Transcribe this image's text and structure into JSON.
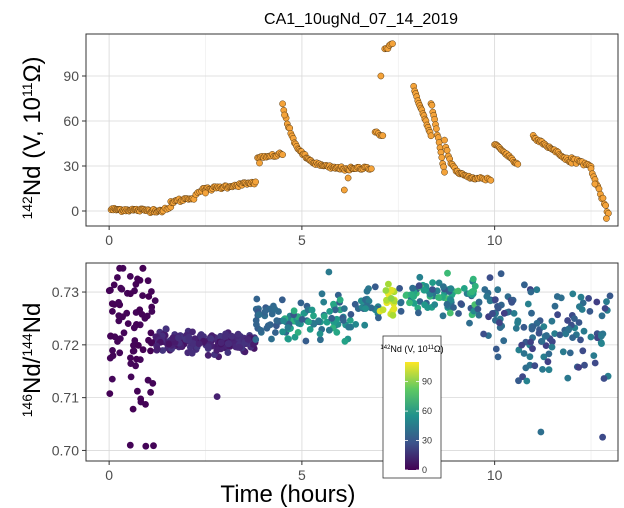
{
  "chart_data": [
    {
      "type": "scatter",
      "title": "CA1_10ugNd_07_14_2019",
      "ylabel": {
        "sup": "142",
        "main": "Nd (V, 10",
        "sup2": "11",
        "end": "Ω)"
      },
      "xlim": [
        -0.6,
        13.2
      ],
      "ylim": [
        -10,
        118
      ],
      "x_ticks": [
        0,
        5,
        10
      ],
      "y_ticks": [
        0,
        30,
        60,
        90
      ],
      "grid": true,
      "marker_color": "#f4a33a",
      "marker_edge": "#5a3a10",
      "segments": [
        {
          "x0": 0.05,
          "x1": 1.4,
          "y0": 1,
          "y1": 0.3,
          "n": 50
        },
        {
          "x0": 1.4,
          "x1": 1.6,
          "y0": 0.3,
          "y1": 2,
          "n": 5
        },
        {
          "x0": 1.6,
          "x1": 2.2,
          "y0": 6,
          "y1": 9,
          "n": 18
        },
        {
          "x0": 2.25,
          "x1": 2.35,
          "y0": 11,
          "y1": 13,
          "n": 3
        },
        {
          "x0": 2.4,
          "x1": 3.8,
          "y0": 14,
          "y1": 19,
          "n": 45
        },
        {
          "x0": 3.85,
          "x1": 4.5,
          "y0": 35,
          "y1": 38,
          "n": 18
        },
        {
          "x0": 4.5,
          "x1": 6.3,
          "y0": 71,
          "y1": 28,
          "n": 60,
          "curve": 2.5
        },
        {
          "x0": 6.3,
          "x1": 6.8,
          "y0": 28,
          "y1": 29,
          "n": 15
        },
        {
          "x0": 6.9,
          "x1": 7.1,
          "y0": 53,
          "y1": 50,
          "n": 6
        },
        {
          "x0": 7.15,
          "x1": 7.35,
          "y0": 108,
          "y1": 111,
          "n": 6
        },
        {
          "x0": 7.9,
          "x1": 8.35,
          "y0": 82,
          "y1": 50,
          "n": 18
        },
        {
          "x0": 8.35,
          "x1": 8.7,
          "y0": 73,
          "y1": 26,
          "n": 16
        },
        {
          "x0": 8.7,
          "x1": 9.5,
          "y0": 47,
          "y1": 22,
          "n": 25,
          "curve": 2
        },
        {
          "x0": 9.5,
          "x1": 9.9,
          "y0": 22,
          "y1": 21,
          "n": 10
        },
        {
          "x0": 10.0,
          "x1": 10.6,
          "y0": 45,
          "y1": 31,
          "n": 20
        },
        {
          "x0": 11.0,
          "x1": 12.0,
          "y0": 50,
          "y1": 32,
          "n": 32
        },
        {
          "x0": 12.0,
          "x1": 12.5,
          "y0": 35,
          "y1": 30,
          "n": 14
        },
        {
          "x0": 12.5,
          "x1": 12.95,
          "y0": 28,
          "y1": -2,
          "n": 14
        }
      ],
      "outliers": [
        {
          "x": 6.1,
          "y": 14
        },
        {
          "x": 6.2,
          "y": 22
        },
        {
          "x": 4.55,
          "y": 64
        },
        {
          "x": 7.05,
          "y": 90
        },
        {
          "x": 12.6,
          "y": 18
        },
        {
          "x": 12.9,
          "y": -5
        },
        {
          "x": 3.9,
          "y": 32
        },
        {
          "x": 2.5,
          "y": 12
        }
      ]
    },
    {
      "type": "scatter",
      "ylabel": {
        "sup": "146",
        "main": "Nd/",
        "sup2": "144",
        "end": "Nd"
      },
      "xlabel": "Time (hours)",
      "xlim": [
        -0.6,
        13.2
      ],
      "ylim": [
        0.698,
        0.7355
      ],
      "x_ticks": [
        0,
        5,
        10
      ],
      "y_ticks": [
        0.7,
        0.71,
        0.72,
        0.73
      ],
      "y_tick_labels": [
        "0.70",
        "0.71",
        "0.72",
        "0.73"
      ],
      "grid": true,
      "colormap": "viridis",
      "color_range": [
        0,
        110
      ],
      "color_by": "142Nd (V, 10^11 Ω)",
      "legend": {
        "title_sup": "142",
        "title_main": "Nd (V, 10",
        "title_sup2": "11",
        "title_end": "Ω)",
        "ticks": [
          0,
          30,
          60,
          90
        ],
        "placement": "inside-lower-center"
      },
      "regions": [
        {
          "x0": 0.0,
          "x1": 1.2,
          "center": 0.724,
          "spread": 0.0115,
          "n": 80,
          "color": [
            0,
            2
          ]
        },
        {
          "x0": 1.2,
          "x1": 3.8,
          "center": 0.7205,
          "spread": 0.0015,
          "n": 200,
          "color": [
            5,
            18
          ]
        },
        {
          "x0": 3.8,
          "x1": 4.5,
          "center": 0.725,
          "spread": 0.004,
          "n": 30,
          "color": [
            30,
            40
          ]
        },
        {
          "x0": 4.5,
          "x1": 6.3,
          "center": 0.7245,
          "spread": 0.0035,
          "n": 80,
          "color": [
            30,
            70
          ]
        },
        {
          "x0": 6.3,
          "x1": 7.0,
          "center": 0.727,
          "spread": 0.003,
          "n": 25,
          "color": [
            28,
            55
          ]
        },
        {
          "x0": 7.0,
          "x1": 7.4,
          "center": 0.728,
          "spread": 0.0025,
          "n": 20,
          "color": [
            90,
            110
          ]
        },
        {
          "x0": 7.5,
          "x1": 9.5,
          "center": 0.729,
          "spread": 0.003,
          "n": 90,
          "color": [
            25,
            80
          ]
        },
        {
          "x0": 9.5,
          "x1": 10.5,
          "center": 0.727,
          "spread": 0.005,
          "n": 40,
          "color": [
            20,
            45
          ]
        },
        {
          "x0": 10.5,
          "x1": 13.0,
          "center": 0.722,
          "spread": 0.008,
          "n": 100,
          "color": [
            20,
            50
          ]
        }
      ],
      "outliers": [
        {
          "x": 0.55,
          "y": 0.701,
          "c": 1
        },
        {
          "x": 0.95,
          "y": 0.7008,
          "c": 1
        },
        {
          "x": 1.15,
          "y": 0.7009,
          "c": 1
        },
        {
          "x": 2.8,
          "y": 0.7102,
          "c": 10
        },
        {
          "x": 12.8,
          "y": 0.7025,
          "c": 25
        },
        {
          "x": 11.2,
          "y": 0.7035,
          "c": 40
        },
        {
          "x": 5.7,
          "y": 0.7338,
          "c": 45
        }
      ]
    }
  ]
}
